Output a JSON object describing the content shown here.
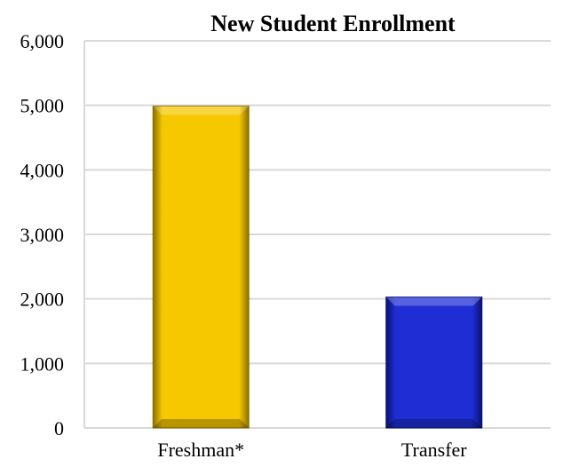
{
  "chart_data": {
    "type": "bar",
    "title": "New Student Enrollment",
    "xlabel": "",
    "ylabel": "",
    "categories": [
      "Freshman*",
      "Transfer"
    ],
    "values": [
      4990,
      2030
    ],
    "ylim": [
      0,
      6000
    ],
    "yticks": [
      "0",
      "1,000",
      "2,000",
      "3,000",
      "4,000",
      "5,000",
      "6,000"
    ],
    "ytick_values": [
      0,
      1000,
      2000,
      3000,
      4000,
      5000,
      6000
    ],
    "grid": true,
    "legend": "none",
    "bar_colors": [
      "#F5C800",
      "#1E2ED4"
    ],
    "bar_edge_colors": [
      "#8A7000",
      "#0A1270"
    ],
    "grid_color": "#D9D9D9"
  }
}
